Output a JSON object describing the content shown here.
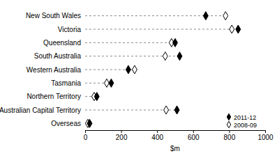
{
  "chart_data": {
    "type": "dot",
    "orientation": "horizontal",
    "categories": [
      "New South Wales",
      "Victoria",
      "Queensland",
      "South Australia",
      "Western Australia",
      "Tasmania",
      "Northern Territory",
      "Australian Capital Territory",
      "Overseas"
    ],
    "series": [
      {
        "name": "2011-12",
        "color": "#000000",
        "marker": "diamond",
        "values": [
          670,
          850,
          500,
          525,
          240,
          145,
          65,
          510,
          25
        ]
      },
      {
        "name": "2008-09",
        "color": "#000000",
        "marker": "diamond-open",
        "values": [
          780,
          815,
          480,
          445,
          275,
          120,
          50,
          450,
          15
        ]
      }
    ],
    "xlabel": "$m",
    "xlim": [
      0,
      1000
    ],
    "xticks": [
      0,
      200,
      400,
      600,
      800,
      1000
    ],
    "legend": "lower right",
    "grid": false
  }
}
